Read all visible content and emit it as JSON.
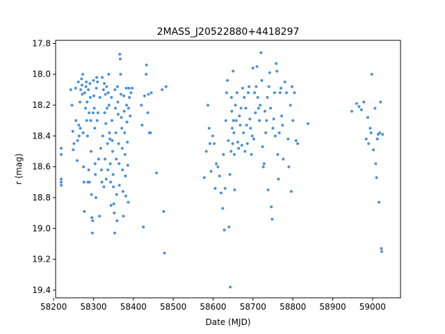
{
  "chart_data": {
    "type": "scatter",
    "title": "2MASS_J20522880+4418297",
    "xlabel": "Date (MJD)",
    "ylabel": "r (mag)",
    "xlim": [
      58205,
      59070
    ],
    "ylim": [
      19.45,
      17.78
    ],
    "y_inverted": true,
    "grid": false,
    "legend": "none",
    "marker_color": "#4a90d9",
    "x_ticks": [
      58200,
      58300,
      58400,
      58500,
      58600,
      58700,
      58800,
      58900,
      59000
    ],
    "x_tick_labels": [
      "58200",
      "58300",
      "58400",
      "58500",
      "58600",
      "58700",
      "58800",
      "58900",
      "59000"
    ],
    "y_ticks": [
      17.8,
      18.0,
      18.2,
      18.4,
      18.6,
      18.8,
      19.0,
      19.2,
      19.4
    ],
    "y_tick_labels": [
      "17.8",
      "18.0",
      "18.2",
      "18.4",
      "18.6",
      "18.8",
      "19.0",
      "19.2",
      "19.4"
    ],
    "points": [
      [
        58219,
        18.48
      ],
      [
        58219,
        18.52
      ],
      [
        58219,
        18.68
      ],
      [
        58219,
        18.7
      ],
      [
        58219,
        18.72
      ],
      [
        58243,
        18.1
      ],
      [
        58246,
        18.2
      ],
      [
        58248,
        18.37
      ],
      [
        58249,
        18.49
      ],
      [
        58251,
        18.45
      ],
      [
        58255,
        18.09
      ],
      [
        58256,
        18.3
      ],
      [
        58259,
        18.56
      ],
      [
        58260,
        18.43
      ],
      [
        58262,
        18.05
      ],
      [
        58263,
        18.33
      ],
      [
        58264,
        18.4
      ],
      [
        58266,
        18.18
      ],
      [
        58267,
        18.35
      ],
      [
        58268,
        18.1
      ],
      [
        58270,
        18.03
      ],
      [
        58271,
        18.07
      ],
      [
        58272,
        18.13
      ],
      [
        58273,
        18.0
      ],
      [
        58274,
        18.38
      ],
      [
        58275,
        18.6
      ],
      [
        58276,
        18.7
      ],
      [
        58277,
        18.89
      ],
      [
        58278,
        18.12
      ],
      [
        58280,
        18.22
      ],
      [
        58281,
        18.08
      ],
      [
        58282,
        18.05
      ],
      [
        58283,
        18.3
      ],
      [
        58284,
        18.18
      ],
      [
        58285,
        18.4
      ],
      [
        58286,
        18.7
      ],
      [
        58287,
        18.1
      ],
      [
        58288,
        18.62
      ],
      [
        58289,
        18.25
      ],
      [
        58290,
        18.7
      ],
      [
        58291,
        18.06
      ],
      [
        58292,
        18.15
      ],
      [
        58293,
        18.3
      ],
      [
        58294,
        18.5
      ],
      [
        58295,
        18.78
      ],
      [
        58296,
        18.93
      ],
      [
        58297,
        19.03
      ],
      [
        58298,
        18.95
      ],
      [
        58299,
        18.25
      ],
      [
        58300,
        18.04
      ],
      [
        58301,
        18.14
      ],
      [
        58302,
        18.22
      ],
      [
        58303,
        18.35
      ],
      [
        58304,
        18.58
      ],
      [
        58305,
        18.65
      ],
      [
        58306,
        18.8
      ],
      [
        58307,
        18.09
      ],
      [
        58308,
        18.02
      ],
      [
        58309,
        18.3
      ],
      [
        58310,
        18.05
      ],
      [
        58311,
        18.25
      ],
      [
        58313,
        18.55
      ],
      [
        58315,
        18.92
      ],
      [
        58316,
        18.15
      ],
      [
        58318,
        18.48
      ],
      [
        58320,
        18.62
      ],
      [
        58321,
        18.7
      ],
      [
        58322,
        18.02
      ],
      [
        58323,
        18.4
      ],
      [
        58325,
        18.1
      ],
      [
        58326,
        18.73
      ],
      [
        58327,
        18.06
      ],
      [
        58328,
        18.25
      ],
      [
        58329,
        18.55
      ],
      [
        58330,
        18.13
      ],
      [
        58331,
        18.32
      ],
      [
        58332,
        18.68
      ],
      [
        58333,
        18.08
      ],
      [
        58334,
        18.22
      ],
      [
        58335,
        18.45
      ],
      [
        58336,
        18.62
      ],
      [
        58337,
        18.12
      ],
      [
        58338,
        18.0
      ],
      [
        58339,
        18.2
      ],
      [
        58340,
        18.38
      ],
      [
        58341,
        18.42
      ],
      [
        58342,
        18.58
      ],
      [
        58343,
        18.7
      ],
      [
        58344,
        18.85
      ],
      [
        58345,
        18.15
      ],
      [
        58346,
        18.3
      ],
      [
        58347,
        18.43
      ],
      [
        58348,
        18.5
      ],
      [
        58349,
        18.65
      ],
      [
        58350,
        18.73
      ],
      [
        58351,
        18.84
      ],
      [
        58352,
        18.9
      ],
      [
        58353,
        19.03
      ],
      [
        58354,
        18.1
      ],
      [
        58355,
        18.22
      ],
      [
        58356,
        18.38
      ],
      [
        58357,
        18.55
      ],
      [
        58358,
        18.78
      ],
      [
        58359,
        18.95
      ],
      [
        58360,
        18.08
      ],
      [
        58361,
        18.18
      ],
      [
        58362,
        18.26
      ],
      [
        58363,
        18.45
      ],
      [
        58364,
        18.58
      ],
      [
        58365,
        18.72
      ],
      [
        58366,
        17.87
      ],
      [
        58367,
        17.9
      ],
      [
        58368,
        18.0
      ],
      [
        58369,
        18.13
      ],
      [
        58370,
        18.28
      ],
      [
        58371,
        18.35
      ],
      [
        58372,
        18.48
      ],
      [
        58373,
        18.62
      ],
      [
        58374,
        18.76
      ],
      [
        58375,
        18.92
      ],
      [
        58376,
        18.14
      ],
      [
        58377,
        18.24
      ],
      [
        58378,
        18.38
      ],
      [
        58379,
        18.52
      ],
      [
        58380,
        18.66
      ],
      [
        58381,
        18.79
      ],
      [
        58382,
        18.09
      ],
      [
        58383,
        18.2
      ],
      [
        58384,
        18.31
      ],
      [
        58385,
        18.44
      ],
      [
        58386,
        18.59
      ],
      [
        58387,
        18.83
      ],
      [
        58388,
        18.22
      ],
      [
        58389,
        18.09
      ],
      [
        58390,
        18.15
      ],
      [
        58392,
        18.27
      ],
      [
        58394,
        18.12
      ],
      [
        58397,
        18.09
      ],
      [
        58420,
        18.2
      ],
      [
        58422,
        18.33
      ],
      [
        58425,
        18.99
      ],
      [
        58428,
        18.14
      ],
      [
        58432,
        18.0
      ],
      [
        58433,
        17.94
      ],
      [
        58436,
        18.25
      ],
      [
        58438,
        18.13
      ],
      [
        58440,
        18.38
      ],
      [
        58443,
        18.38
      ],
      [
        58445,
        18.12
      ],
      [
        58458,
        18.64
      ],
      [
        58472,
        18.1
      ],
      [
        58476,
        18.89
      ],
      [
        58478,
        19.16
      ],
      [
        58482,
        18.08
      ],
      [
        58578,
        18.67
      ],
      [
        58583,
        18.5
      ],
      [
        58587,
        18.2
      ],
      [
        58590,
        18.35
      ],
      [
        58592,
        18.45
      ],
      [
        58595,
        18.63
      ],
      [
        58599,
        18.4
      ],
      [
        58603,
        18.45
      ],
      [
        58605,
        18.74
      ],
      [
        58608,
        18.58
      ],
      [
        58612,
        18.6
      ],
      [
        58616,
        18.66
      ],
      [
        58620,
        18.77
      ],
      [
        58624,
        18.87
      ],
      [
        58626,
        18.52
      ],
      [
        58628,
        19.01
      ],
      [
        58630,
        18.74
      ],
      [
        58632,
        18.3
      ],
      [
        58634,
        18.12
      ],
      [
        58636,
        18.04
      ],
      [
        58638,
        18.43
      ],
      [
        58640,
        18.99
      ],
      [
        58642,
        18.65
      ],
      [
        58643,
        19.38
      ],
      [
        58645,
        18.5
      ],
      [
        58646,
        18.15
      ],
      [
        58647,
        18.24
      ],
      [
        58648,
        18.35
      ],
      [
        58649,
        18.45
      ],
      [
        58650,
        17.98
      ],
      [
        58651,
        18.3
      ],
      [
        58652,
        18.38
      ],
      [
        58653,
        18.52
      ],
      [
        58654,
        18.75
      ],
      [
        58656,
        18.2
      ],
      [
        58658,
        18.3
      ],
      [
        58660,
        18.12
      ],
      [
        58662,
        18.44
      ],
      [
        58664,
        18.48
      ],
      [
        58666,
        18.27
      ],
      [
        58668,
        18.33
      ],
      [
        58670,
        18.22
      ],
      [
        58672,
        18.46
      ],
      [
        58674,
        18.09
      ],
      [
        58676,
        18.38
      ],
      [
        58678,
        18.15
      ],
      [
        58680,
        18.5
      ],
      [
        58682,
        18.22
      ],
      [
        58684,
        18.33
      ],
      [
        58686,
        18.45
      ],
      [
        58688,
        18.12
      ],
      [
        58690,
        18.08
      ],
      [
        58692,
        18.29
      ],
      [
        58694,
        18.35
      ],
      [
        58696,
        18.52
      ],
      [
        58698,
        18.4
      ],
      [
        58700,
        17.96
      ],
      [
        58702,
        18.42
      ],
      [
        58704,
        18.12
      ],
      [
        58706,
        18.25
      ],
      [
        58708,
        18.08
      ],
      [
        58710,
        17.95
      ],
      [
        58712,
        18.15
      ],
      [
        58714,
        18.22
      ],
      [
        58716,
        18.3
      ],
      [
        58718,
        18.2
      ],
      [
        58720,
        17.86
      ],
      [
        58722,
        18.04
      ],
      [
        58724,
        18.47
      ],
      [
        58726,
        18.6
      ],
      [
        58728,
        18.58
      ],
      [
        58730,
        18.24
      ],
      [
        58732,
        18.38
      ],
      [
        58734,
        18.3
      ],
      [
        58736,
        18.15
      ],
      [
        58738,
        18.75
      ],
      [
        58740,
        18.08
      ],
      [
        58742,
        17.99
      ],
      [
        58744,
        18.22
      ],
      [
        58746,
        18.86
      ],
      [
        58748,
        18.94
      ],
      [
        58750,
        18.35
      ],
      [
        58752,
        18.29
      ],
      [
        58754,
        18.12
      ],
      [
        58756,
        18.4
      ],
      [
        58758,
        17.93
      ],
      [
        58760,
        17.98
      ],
      [
        58762,
        18.52
      ],
      [
        58764,
        18.68
      ],
      [
        58766,
        18.38
      ],
      [
        58768,
        18.12
      ],
      [
        58770,
        18.09
      ],
      [
        58772,
        18.27
      ],
      [
        58774,
        18.33
      ],
      [
        58776,
        18.55
      ],
      [
        58780,
        18.05
      ],
      [
        58784,
        18.12
      ],
      [
        58788,
        18.42
      ],
      [
        58790,
        18.6
      ],
      [
        58794,
        18.2
      ],
      [
        58796,
        18.76
      ],
      [
        58798,
        18.08
      ],
      [
        58800,
        18.3
      ],
      [
        58804,
        18.12
      ],
      [
        58808,
        18.43
      ],
      [
        58812,
        18.45
      ],
      [
        58838,
        18.32
      ],
      [
        58948,
        18.24
      ],
      [
        58960,
        18.19
      ],
      [
        58966,
        18.21
      ],
      [
        58972,
        18.23
      ],
      [
        58978,
        18.18
      ],
      [
        58984,
        18.42
      ],
      [
        58988,
        18.28
      ],
      [
        58990,
        18.45
      ],
      [
        58994,
        18.35
      ],
      [
        58996,
        18.38
      ],
      [
        58998,
        18.0
      ],
      [
        59002,
        18.49
      ],
      [
        59006,
        18.22
      ],
      [
        59008,
        18.58
      ],
      [
        59010,
        18.67
      ],
      [
        59012,
        18.42
      ],
      [
        59014,
        18.39
      ],
      [
        59016,
        18.83
      ],
      [
        59018,
        18.38
      ],
      [
        59020,
        18.18
      ],
      [
        59022,
        19.13
      ],
      [
        59023,
        19.15
      ],
      [
        59025,
        18.39
      ]
    ]
  }
}
